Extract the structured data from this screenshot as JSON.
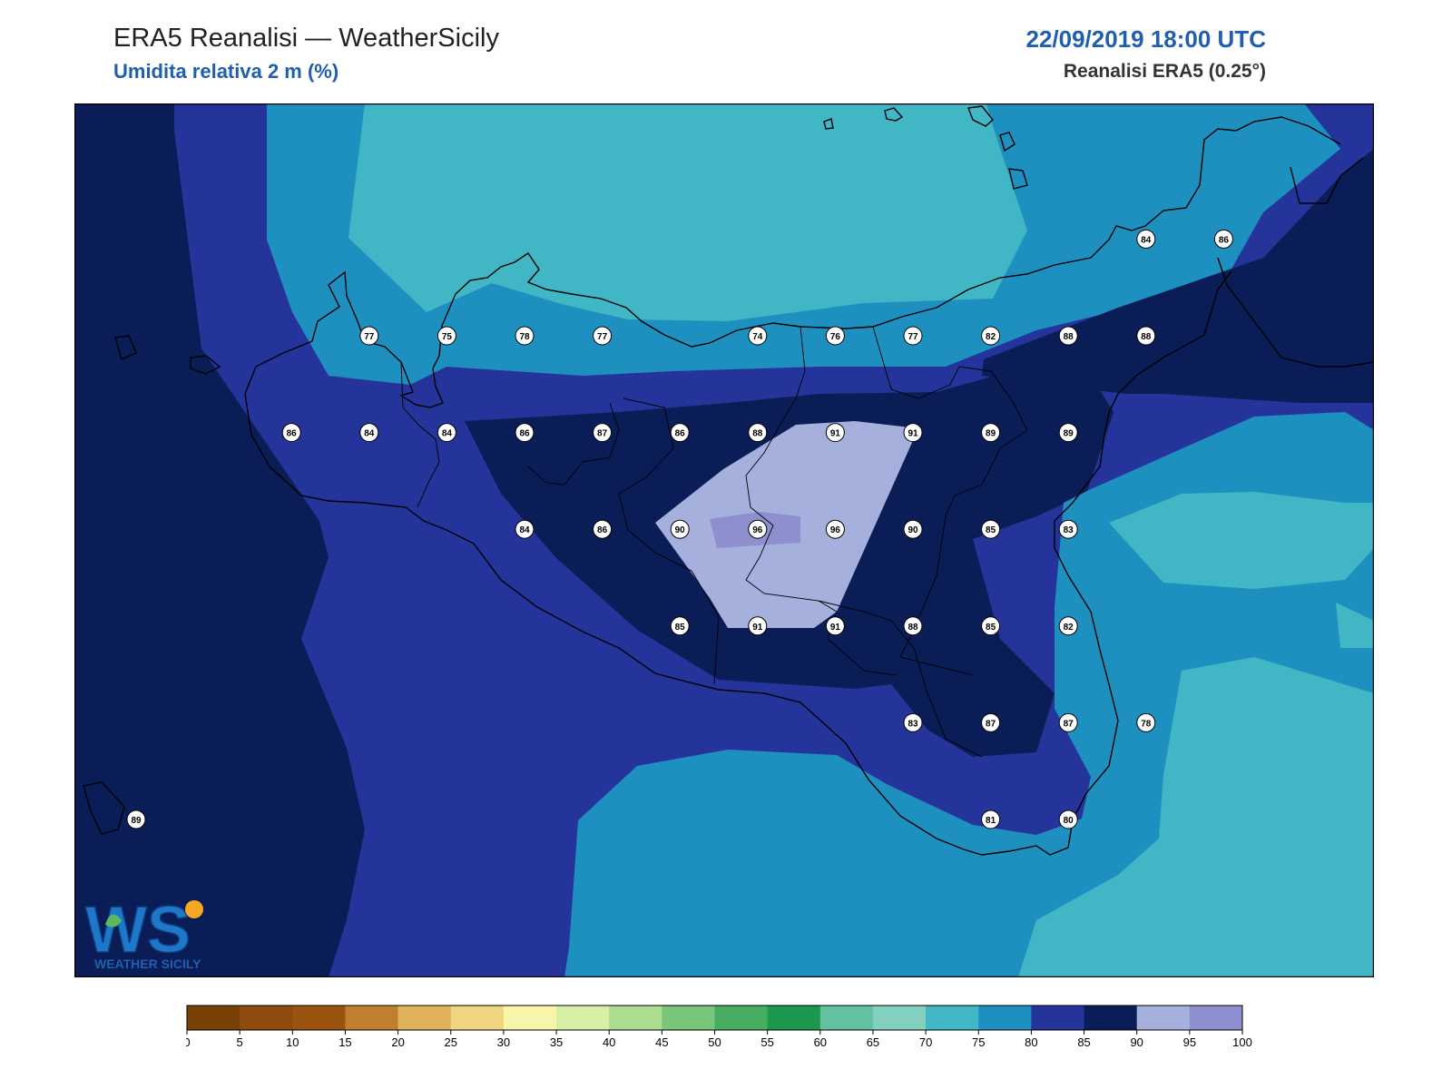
{
  "header": {
    "title": "ERA5 Reanalisi — WeatherSicily",
    "subtitle": "Umidita relativa 2 m (%)",
    "datetime": "22/09/2019 18:00 UTC",
    "source": "Reanalisi ERA5 (0.25°)"
  },
  "logo": {
    "letters": "WS",
    "text": "WEATHER SICILY"
  },
  "colorbar": {
    "ticks": [
      "0",
      "5",
      "10",
      "15",
      "20",
      "25",
      "30",
      "35",
      "40",
      "45",
      "50",
      "55",
      "60",
      "65",
      "70",
      "75",
      "80",
      "85",
      "90",
      "95",
      "100"
    ],
    "colors": [
      "#7a4106",
      "#8e4b0d",
      "#9b5410",
      "#c07f2e",
      "#e0b25c",
      "#f0d580",
      "#f8f5aa",
      "#d8efa6",
      "#acdd8e",
      "#79c579",
      "#47ad60",
      "#1c984f",
      "#62c2a0",
      "#83d0c0",
      "#41b6c5",
      "#1e90c0",
      "#25349a",
      "#0b1d57",
      "#a6b0dc",
      "#8e8fcf"
    ]
  },
  "chart_data": {
    "type": "heatmap",
    "variable": "Umidita relativa 2 m (%)",
    "levels": [
      0,
      5,
      10,
      15,
      20,
      25,
      30,
      35,
      40,
      45,
      50,
      55,
      60,
      65,
      70,
      75,
      80,
      85,
      90,
      95,
      100
    ],
    "station_values": [
      {
        "label": "77",
        "lon": 12.25,
        "lat": 38.15
      },
      {
        "label": "75",
        "lon": 12.5,
        "lat": 38.15
      },
      {
        "label": "78",
        "lon": 12.75,
        "lat": 38.15
      },
      {
        "label": "77",
        "lon": 13.0,
        "lat": 38.15
      },
      {
        "label": "74",
        "lon": 13.5,
        "lat": 38.15
      },
      {
        "label": "76",
        "lon": 13.75,
        "lat": 38.15
      },
      {
        "label": "77",
        "lon": 14.0,
        "lat": 38.15
      },
      {
        "label": "82",
        "lon": 14.25,
        "lat": 38.15
      },
      {
        "label": "88",
        "lon": 14.5,
        "lat": 38.15
      },
      {
        "label": "88",
        "lon": 14.75,
        "lat": 38.15
      },
      {
        "label": "84",
        "lon": 14.75,
        "lat": 38.4
      },
      {
        "label": "86",
        "lon": 15.0,
        "lat": 38.4
      },
      {
        "label": "86",
        "lon": 12.0,
        "lat": 37.9
      },
      {
        "label": "84",
        "lon": 12.25,
        "lat": 37.9
      },
      {
        "label": "84",
        "lon": 12.5,
        "lat": 37.9
      },
      {
        "label": "86",
        "lon": 12.75,
        "lat": 37.9
      },
      {
        "label": "87",
        "lon": 13.0,
        "lat": 37.9
      },
      {
        "label": "86",
        "lon": 13.25,
        "lat": 37.9
      },
      {
        "label": "88",
        "lon": 13.5,
        "lat": 37.9
      },
      {
        "label": "91",
        "lon": 13.75,
        "lat": 37.9
      },
      {
        "label": "91",
        "lon": 14.0,
        "lat": 37.9
      },
      {
        "label": "89",
        "lon": 14.25,
        "lat": 37.9
      },
      {
        "label": "89",
        "lon": 14.5,
        "lat": 37.9
      },
      {
        "label": "84",
        "lon": 12.75,
        "lat": 37.65
      },
      {
        "label": "86",
        "lon": 13.0,
        "lat": 37.65
      },
      {
        "label": "90",
        "lon": 13.25,
        "lat": 37.65
      },
      {
        "label": "96",
        "lon": 13.5,
        "lat": 37.65
      },
      {
        "label": "96",
        "lon": 13.75,
        "lat": 37.65
      },
      {
        "label": "90",
        "lon": 14.0,
        "lat": 37.65
      },
      {
        "label": "85",
        "lon": 14.25,
        "lat": 37.65
      },
      {
        "label": "83",
        "lon": 14.5,
        "lat": 37.65
      },
      {
        "label": "85",
        "lon": 13.25,
        "lat": 37.4
      },
      {
        "label": "91",
        "lon": 13.5,
        "lat": 37.4
      },
      {
        "label": "91",
        "lon": 13.75,
        "lat": 37.4
      },
      {
        "label": "88",
        "lon": 14.0,
        "lat": 37.4
      },
      {
        "label": "85",
        "lon": 14.25,
        "lat": 37.4
      },
      {
        "label": "82",
        "lon": 14.5,
        "lat": 37.4
      },
      {
        "label": "83",
        "lon": 14.0,
        "lat": 37.15
      },
      {
        "label": "87",
        "lon": 14.25,
        "lat": 37.15
      },
      {
        "label": "87",
        "lon": 14.5,
        "lat": 37.15
      },
      {
        "label": "78",
        "lon": 14.75,
        "lat": 37.15
      },
      {
        "label": "81",
        "lon": 14.25,
        "lat": 36.9
      },
      {
        "label": "80",
        "lon": 14.5,
        "lat": 36.9
      },
      {
        "label": "89",
        "lon": 11.5,
        "lat": 36.9
      }
    ],
    "xlabel": "",
    "ylabel": ""
  }
}
